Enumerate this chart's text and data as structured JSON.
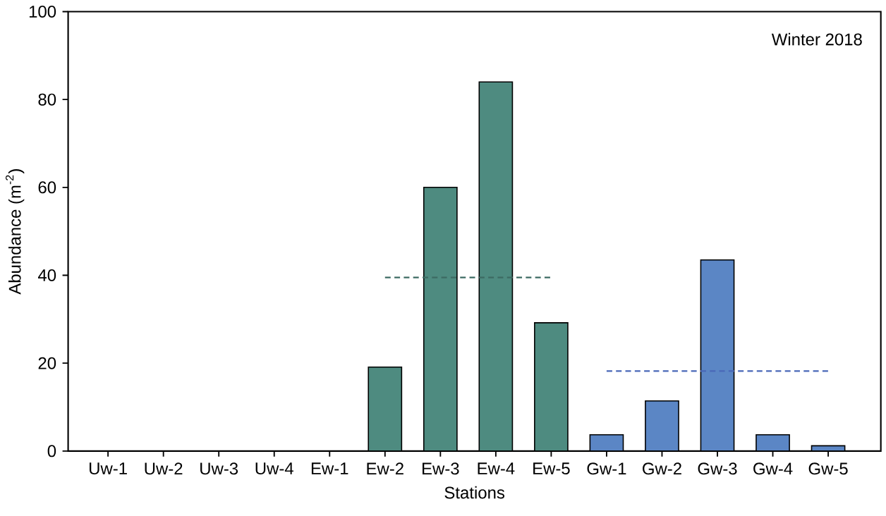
{
  "chart_data": {
    "type": "bar",
    "xlabel": "Stations",
    "ylabel": "Abundance (m$^{-2}$)",
    "categories": [
      "Uw-1",
      "Uw-2",
      "Uw-3",
      "Uw-4",
      "Ew-1",
      "Ew-2",
      "Ew-3",
      "Ew-4",
      "Ew-5",
      "Gw-1",
      "Gw-2",
      "Gw-3",
      "Gw-4",
      "Gw-5"
    ],
    "series": [
      {
        "values": [
          0,
          0,
          0,
          0,
          0,
          19.1,
          60,
          84,
          29.2,
          3.7,
          11.4,
          43.5,
          3.7,
          1.2
        ],
        "colors": [
          "#4e8b80",
          "#4e8b80",
          "#4e8b80",
          "#4e8b80",
          "#4e8b80",
          "#4e8b80",
          "#4e8b80",
          "#4e8b80",
          "#4e8b80",
          "#5b86c5",
          "#5b86c5",
          "#5b86c5",
          "#5b86c5",
          "#5b86c5"
        ]
      },
      {
        "type": "line",
        "x": [
          "Ew-2",
          "Ew-5"
        ],
        "values": [
          39.5,
          39.5
        ],
        "color": "#3d6b63",
        "line_style": "dashed"
      },
      {
        "type": "line",
        "x": [
          "Gw-1",
          "Gw-5"
        ],
        "values": [
          18.2,
          18.2
        ],
        "color": "#4a68b8",
        "line_style": "dashed"
      }
    ],
    "ylim": [
      0,
      100
    ],
    "yticks": [
      0,
      20,
      40,
      60,
      80,
      100
    ],
    "annotations": [
      "Winter 2018"
    ]
  }
}
